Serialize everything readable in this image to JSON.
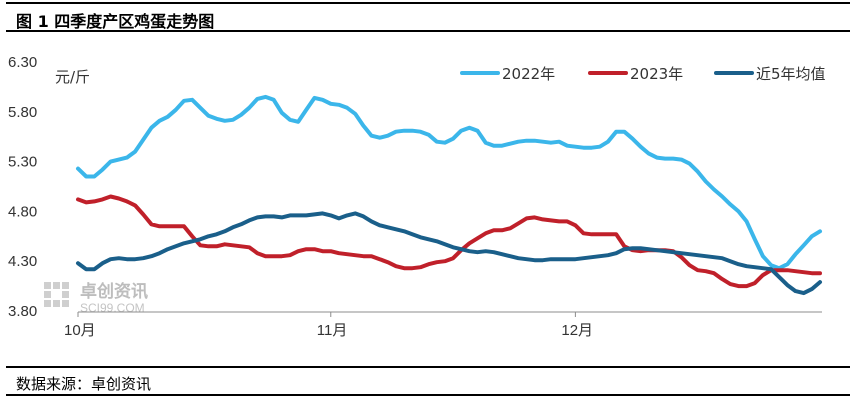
{
  "header": {
    "title": "图 1  四季度产区鸡蛋走势图"
  },
  "footer": {
    "source": "数据来源：卓创资讯"
  },
  "watermark": {
    "name": "卓创资讯",
    "site": "SCI99.COM"
  },
  "chart_data": {
    "type": "line",
    "unit_label": "元/斤",
    "ylim": [
      3.8,
      6.3
    ],
    "y_ticks": [
      "3.80",
      "4.30",
      "4.80",
      "5.30",
      "5.80",
      "6.30"
    ],
    "x_ticks": [
      {
        "label": "10月",
        "index": 0
      },
      {
        "label": "11月",
        "index": 31
      },
      {
        "label": "12月",
        "index": 61
      }
    ],
    "x_count": 92,
    "grid": false,
    "legend_position": "top-right",
    "series": [
      {
        "name": "2022年",
        "color": "#3bb6ea",
        "values": [
          5.23,
          5.15,
          5.15,
          5.22,
          5.3,
          5.32,
          5.34,
          5.4,
          5.52,
          5.64,
          5.71,
          5.75,
          5.82,
          5.91,
          5.92,
          5.84,
          5.76,
          5.73,
          5.71,
          5.72,
          5.77,
          5.84,
          5.93,
          5.95,
          5.92,
          5.79,
          5.72,
          5.7,
          5.82,
          5.94,
          5.92,
          5.88,
          5.87,
          5.84,
          5.78,
          5.66,
          5.56,
          5.54,
          5.56,
          5.6,
          5.61,
          5.61,
          5.6,
          5.57,
          5.5,
          5.49,
          5.53,
          5.61,
          5.64,
          5.61,
          5.49,
          5.46,
          5.46,
          5.48,
          5.5,
          5.51,
          5.51,
          5.5,
          5.49,
          5.5,
          5.46,
          5.45,
          5.44,
          5.44,
          5.45,
          5.5,
          5.6,
          5.6,
          5.53,
          5.45,
          5.38,
          5.34,
          5.33,
          5.33,
          5.32,
          5.28,
          5.2,
          5.1,
          5.02,
          4.95,
          4.87,
          4.8,
          4.7,
          4.52,
          4.35,
          4.26,
          4.23,
          4.27,
          4.37,
          4.46,
          4.55,
          4.6
        ]
      },
      {
        "name": "2023年",
        "color": "#c0202a",
        "values": [
          4.92,
          4.89,
          4.9,
          4.92,
          4.95,
          4.93,
          4.9,
          4.86,
          4.77,
          4.67,
          4.65,
          4.65,
          4.65,
          4.65,
          4.55,
          4.46,
          4.45,
          4.45,
          4.47,
          4.46,
          4.45,
          4.44,
          4.38,
          4.35,
          4.35,
          4.35,
          4.36,
          4.4,
          4.42,
          4.42,
          4.4,
          4.4,
          4.38,
          4.37,
          4.36,
          4.35,
          4.35,
          4.32,
          4.29,
          4.25,
          4.23,
          4.23,
          4.24,
          4.27,
          4.29,
          4.3,
          4.33,
          4.41,
          4.48,
          4.53,
          4.58,
          4.61,
          4.61,
          4.63,
          4.68,
          4.73,
          4.74,
          4.72,
          4.71,
          4.7,
          4.7,
          4.66,
          4.58,
          4.57,
          4.57,
          4.57,
          4.57,
          4.45,
          4.41,
          4.4,
          4.41,
          4.41,
          4.41,
          4.4,
          4.34,
          4.26,
          4.21,
          4.2,
          4.18,
          4.12,
          4.07,
          4.05,
          4.05,
          4.08,
          4.16,
          4.21,
          4.21,
          4.21,
          4.2,
          4.19,
          4.18,
          4.18
        ]
      },
      {
        "name": "近5年均值",
        "color": "#1a5f8a",
        "values": [
          4.28,
          4.22,
          4.22,
          4.28,
          4.32,
          4.33,
          4.32,
          4.32,
          4.33,
          4.35,
          4.38,
          4.42,
          4.45,
          4.48,
          4.5,
          4.52,
          4.55,
          4.57,
          4.6,
          4.64,
          4.67,
          4.71,
          4.74,
          4.75,
          4.75,
          4.74,
          4.76,
          4.76,
          4.76,
          4.77,
          4.78,
          4.76,
          4.73,
          4.76,
          4.78,
          4.75,
          4.7,
          4.66,
          4.64,
          4.62,
          4.6,
          4.57,
          4.54,
          4.52,
          4.5,
          4.47,
          4.44,
          4.42,
          4.4,
          4.39,
          4.4,
          4.39,
          4.37,
          4.35,
          4.33,
          4.32,
          4.31,
          4.31,
          4.32,
          4.32,
          4.32,
          4.32,
          4.33,
          4.34,
          4.35,
          4.36,
          4.38,
          4.42,
          4.43,
          4.43,
          4.42,
          4.41,
          4.4,
          4.39,
          4.38,
          4.37,
          4.36,
          4.35,
          4.34,
          4.33,
          4.3,
          4.27,
          4.25,
          4.24,
          4.23,
          4.22,
          4.14,
          4.06,
          4.0,
          3.98,
          4.02,
          4.09
        ]
      }
    ]
  }
}
